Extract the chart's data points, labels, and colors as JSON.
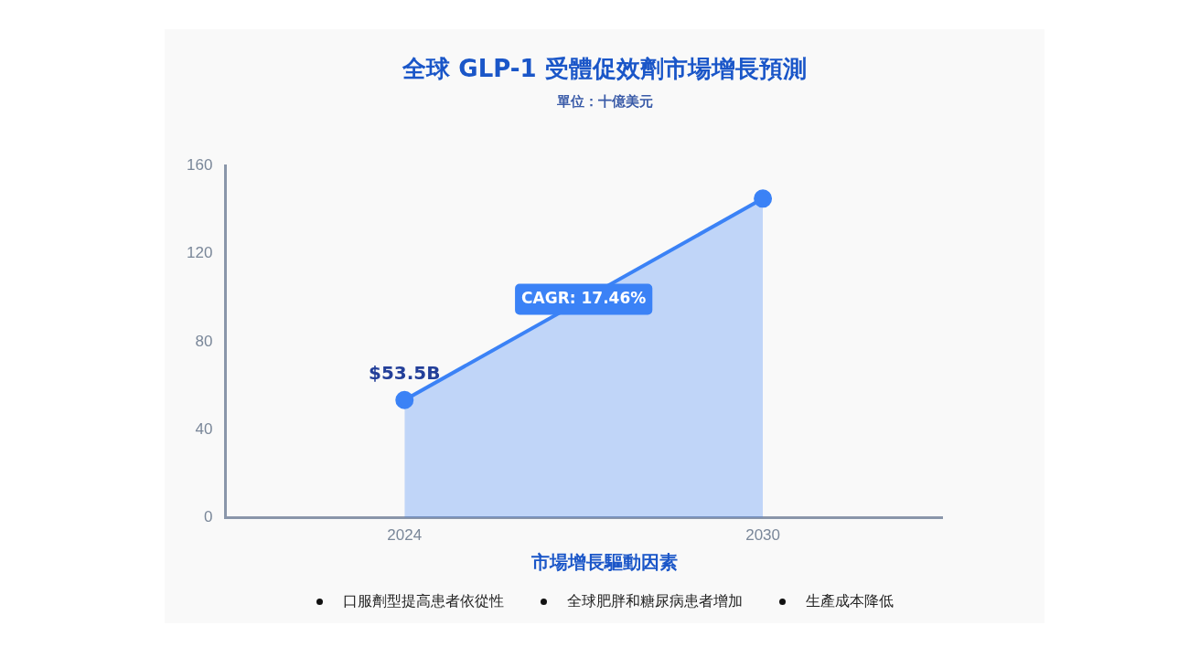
{
  "chart_data": {
    "type": "area",
    "title": "全球 GLP-1 受體促效劑市場增長預測",
    "subtitle": "單位：十億美元",
    "categories": [
      "2024",
      "2030"
    ],
    "series": [
      {
        "color": "#3b82f6",
        "values": [
          53.5,
          145
        ],
        "value_labels": [
          "$53.5B",
          null
        ]
      }
    ],
    "ylim": [
      0,
      160
    ],
    "yticks": [
      0,
      40,
      80,
      120,
      160
    ],
    "grid": false,
    "legend": false,
    "marker": "circle",
    "annotations": [
      "CAGR: 17.46%",
      "市場增長驅動因素",
      "口服劑型提高患者依從性",
      "全球肥胖和糖尿病患者增加",
      "生產成本降低"
    ]
  }
}
